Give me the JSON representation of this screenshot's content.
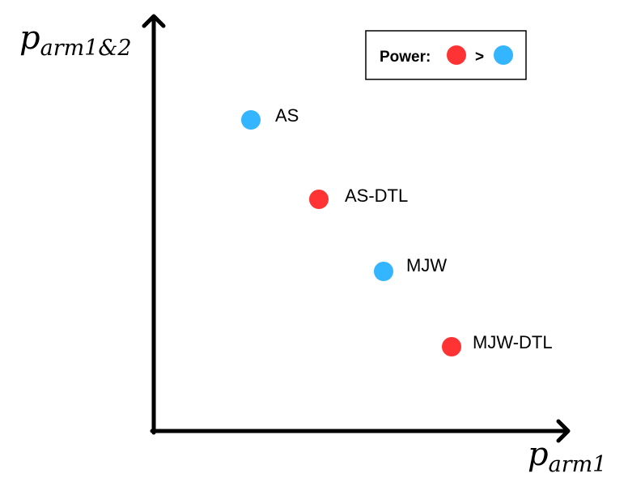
{
  "axes": {
    "y_label": {
      "main": "p",
      "sub": "arm1&2"
    },
    "x_label": {
      "main": "p",
      "sub": "arm1"
    }
  },
  "legend": {
    "prefix": "Power:",
    "relation": ">",
    "higher_color": "#ff3333",
    "lower_color": "#33b5ff"
  },
  "points": [
    {
      "label": "AS",
      "color": "#33b5ff"
    },
    {
      "label": "AS-DTL",
      "color": "#ff3333"
    },
    {
      "label": "MJW",
      "color": "#33b5ff"
    },
    {
      "label": "MJW-DTL",
      "color": "#ff3333"
    }
  ]
}
